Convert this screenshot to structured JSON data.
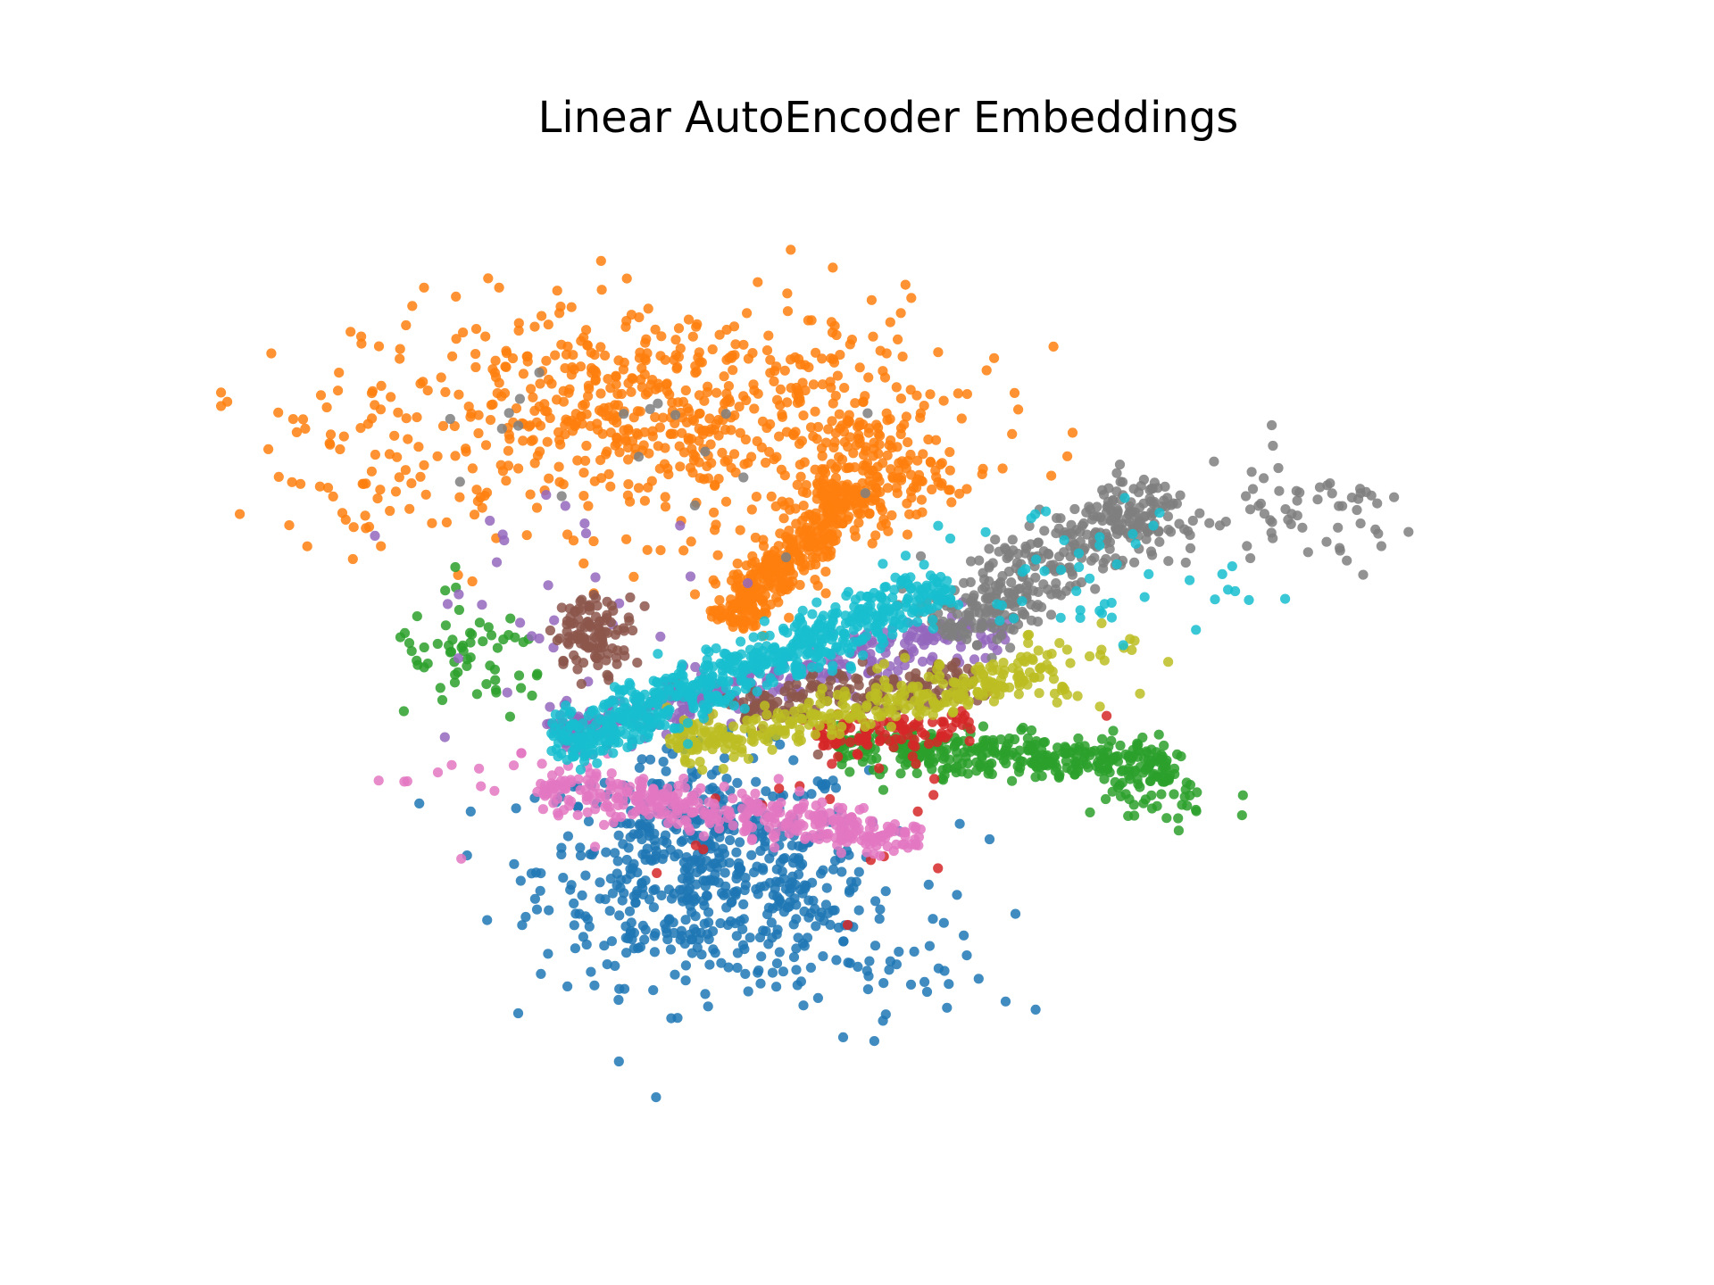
{
  "chart_data": {
    "type": "scatter",
    "title": "Linear AutoEncoder Embeddings",
    "xlabel": "",
    "ylabel": "",
    "axes_visible": false,
    "grid": false,
    "legend": "none",
    "marker": "circle",
    "xlim": [
      0,
      100
    ],
    "ylim": [
      0,
      100
    ],
    "series": [
      {
        "color": "#1f77b4",
        "clusters": [
          {
            "shape": "gaussian",
            "n": 560,
            "cx": 36,
            "cy": 27,
            "sx": 6,
            "sy": 6
          },
          {
            "shape": "gaussian",
            "n": 80,
            "cx": 45,
            "cy": 20,
            "sx": 6,
            "sy": 5
          },
          {
            "shape": "gaussian",
            "n": 10,
            "cx": 52,
            "cy": 14,
            "sx": 4,
            "sy": 3
          }
        ]
      },
      {
        "color": "#ff7f0e",
        "clusters": [
          {
            "shape": "gaussian",
            "n": 650,
            "cx": 33,
            "cy": 75,
            "sx": 11,
            "sy": 6
          },
          {
            "shape": "band",
            "n": 380,
            "x0": 38,
            "y0": 53,
            "x1": 47,
            "y1": 67,
            "spread": 1.2
          },
          {
            "shape": "gaussian",
            "n": 160,
            "cx": 48,
            "cy": 69,
            "sx": 3,
            "sy": 3
          },
          {
            "shape": "gaussian",
            "n": 40,
            "cx": 11,
            "cy": 68,
            "sx": 3,
            "sy": 5
          }
        ]
      },
      {
        "color": "#2ca02c",
        "clusters": [
          {
            "shape": "band",
            "n": 380,
            "x0": 46,
            "y0": 40,
            "x1": 71,
            "y1": 38,
            "spread": 1.2
          },
          {
            "shape": "gaussian",
            "n": 60,
            "cx": 19,
            "cy": 49,
            "sx": 3,
            "sy": 3
          },
          {
            "shape": "gaussian",
            "n": 40,
            "cx": 69,
            "cy": 34,
            "sx": 3,
            "sy": 2
          }
        ]
      },
      {
        "color": "#d62728",
        "clusters": [
          {
            "shape": "band",
            "n": 100,
            "x0": 44,
            "y0": 41,
            "x1": 56,
            "y1": 42,
            "spread": 0.9
          },
          {
            "shape": "gaussian",
            "n": 25,
            "cx": 47,
            "cy": 35,
            "sx": 8,
            "sy": 6
          }
        ]
      },
      {
        "color": "#9467bd",
        "clusters": [
          {
            "shape": "band",
            "n": 320,
            "x0": 25,
            "y0": 41,
            "x1": 58,
            "y1": 53,
            "spread": 1.3
          },
          {
            "shape": "gaussian",
            "n": 30,
            "cx": 25,
            "cy": 55,
            "sx": 6,
            "sy": 6
          }
        ]
      },
      {
        "color": "#8c564b",
        "clusters": [
          {
            "shape": "gaussian",
            "n": 110,
            "cx": 28,
            "cy": 52,
            "sx": 1.5,
            "sy": 2
          },
          {
            "shape": "band",
            "n": 170,
            "x0": 38,
            "y0": 44,
            "x1": 56,
            "y1": 47,
            "spread": 1.2
          }
        ]
      },
      {
        "color": "#e377c2",
        "clusters": [
          {
            "shape": "band",
            "n": 380,
            "x0": 24,
            "y0": 36,
            "x1": 52,
            "y1": 30,
            "spread": 1.2
          },
          {
            "shape": "gaussian",
            "n": 15,
            "cx": 19,
            "cy": 37,
            "sx": 4,
            "sy": 3
          }
        ]
      },
      {
        "color": "#7f7f7f",
        "clusters": [
          {
            "shape": "band",
            "n": 380,
            "x0": 54,
            "y0": 52,
            "x1": 70,
            "y1": 67,
            "spread": 2.0
          },
          {
            "shape": "gaussian",
            "n": 60,
            "cx": 80,
            "cy": 64,
            "sx": 5,
            "sy": 3
          },
          {
            "shape": "gaussian",
            "n": 20,
            "cx": 30,
            "cy": 72,
            "sx": 8,
            "sy": 8
          }
        ]
      },
      {
        "color": "#bcbd22",
        "clusters": [
          {
            "shape": "band",
            "n": 320,
            "x0": 34,
            "y0": 40,
            "x1": 62,
            "y1": 48,
            "spread": 1.3
          },
          {
            "shape": "gaussian",
            "n": 30,
            "cx": 63,
            "cy": 49,
            "sx": 4,
            "sy": 2
          }
        ]
      },
      {
        "color": "#17becf",
        "clusters": [
          {
            "shape": "band",
            "n": 650,
            "x0": 25,
            "y0": 40,
            "x1": 54,
            "y1": 57,
            "spread": 1.4
          },
          {
            "shape": "gaussian",
            "n": 50,
            "cx": 64,
            "cy": 58,
            "sx": 6,
            "sy": 4
          }
        ]
      }
    ]
  }
}
